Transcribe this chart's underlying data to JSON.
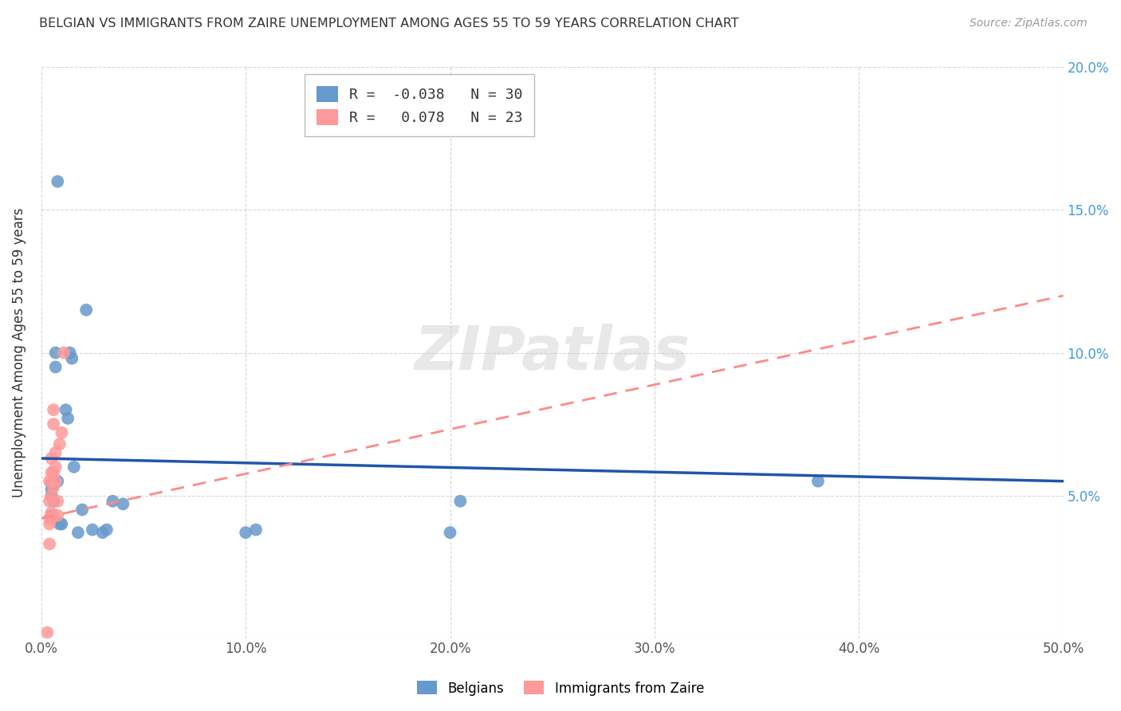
{
  "title": "BELGIAN VS IMMIGRANTS FROM ZAIRE UNEMPLOYMENT AMONG AGES 55 TO 59 YEARS CORRELATION CHART",
  "source": "Source: ZipAtlas.com",
  "ylabel": "Unemployment Among Ages 55 to 59 years",
  "xlim": [
    0.0,
    0.5
  ],
  "ylim": [
    0.0,
    0.2
  ],
  "xticks": [
    0.0,
    0.1,
    0.2,
    0.3,
    0.4,
    0.5
  ],
  "xticklabels": [
    "0.0%",
    "10.0%",
    "20.0%",
    "30.0%",
    "40.0%",
    "50.0%"
  ],
  "yticks": [
    0.0,
    0.05,
    0.1,
    0.15,
    0.2
  ],
  "yticklabels_right": [
    "",
    "5.0%",
    "10.0%",
    "15.0%",
    "20.0%"
  ],
  "belgian_color": "#6699CC",
  "zaire_color": "#FF9999",
  "belgian_R": -0.038,
  "belgian_N": 30,
  "zaire_R": 0.078,
  "zaire_N": 23,
  "watermark": "ZIPatlas",
  "belgians_x": [
    0.005,
    0.005,
    0.005,
    0.005,
    0.006,
    0.006,
    0.007,
    0.007,
    0.008,
    0.008,
    0.009,
    0.01,
    0.012,
    0.013,
    0.014,
    0.015,
    0.016,
    0.018,
    0.02,
    0.022,
    0.025,
    0.03,
    0.032,
    0.035,
    0.04,
    0.1,
    0.105,
    0.2,
    0.205,
    0.38
  ],
  "belgians_y": [
    0.054,
    0.052,
    0.05,
    0.043,
    0.054,
    0.048,
    0.1,
    0.095,
    0.16,
    0.055,
    0.04,
    0.04,
    0.08,
    0.077,
    0.1,
    0.098,
    0.06,
    0.037,
    0.045,
    0.115,
    0.038,
    0.037,
    0.038,
    0.048,
    0.047,
    0.037,
    0.038,
    0.037,
    0.048,
    0.055
  ],
  "zaire_x": [
    0.003,
    0.004,
    0.004,
    0.004,
    0.004,
    0.004,
    0.005,
    0.005,
    0.005,
    0.005,
    0.005,
    0.006,
    0.006,
    0.006,
    0.006,
    0.007,
    0.007,
    0.007,
    0.008,
    0.008,
    0.009,
    0.01,
    0.011
  ],
  "zaire_y": [
    0.002,
    0.033,
    0.04,
    0.042,
    0.048,
    0.055,
    0.042,
    0.044,
    0.05,
    0.058,
    0.063,
    0.053,
    0.058,
    0.075,
    0.08,
    0.055,
    0.06,
    0.065,
    0.043,
    0.048,
    0.068,
    0.072,
    0.1
  ],
  "belgian_trend_start_y": 0.063,
  "belgian_trend_end_y": 0.055,
  "zaire_trend_start_y": 0.042,
  "zaire_trend_end_y": 0.12
}
